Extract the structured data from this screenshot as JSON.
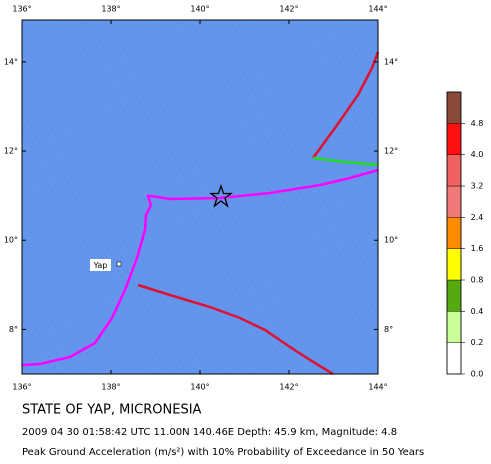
{
  "map": {
    "title": "STATE OF YAP, MICRONESIA",
    "event": "2009 04 30 01:58:42 UTC 11.00N 140.46E Depth: 45.9 km, Magnitude: 4.8",
    "caption": "Peak Ground Acceleration (m/s²) with 10% Probability of Exceedance in 50 Years",
    "place_label": "Yap",
    "xlim": [
      136,
      144
    ],
    "ylim": [
      7,
      14.94
    ],
    "xticks": [
      {
        "value": 136,
        "label": "136°"
      },
      {
        "value": 138,
        "label": "138°"
      },
      {
        "value": 140,
        "label": "140°"
      },
      {
        "value": 142,
        "label": "142°"
      },
      {
        "value": 144,
        "label": "144°"
      }
    ],
    "yticks": [
      {
        "value": 8,
        "label": "8°"
      },
      {
        "value": 10,
        "label": "10°"
      },
      {
        "value": 12,
        "label": "12°"
      },
      {
        "value": 14,
        "label": "14°"
      }
    ],
    "legend": {
      "ticks": [
        {
          "value": 0,
          "label": "0.0"
        },
        0.2,
        0.4,
        0.8,
        1.6,
        2.4,
        3.2,
        {
          "value": 4,
          "label": "4.0"
        },
        4.8
      ],
      "colors": [
        "#ffffff",
        "#ccff99",
        "#55aa11",
        "#ffff00",
        "#ff8c00",
        "#f07a7a",
        "#f06262",
        "#ff1010",
        "#8a4a3a"
      ]
    }
  }
}
